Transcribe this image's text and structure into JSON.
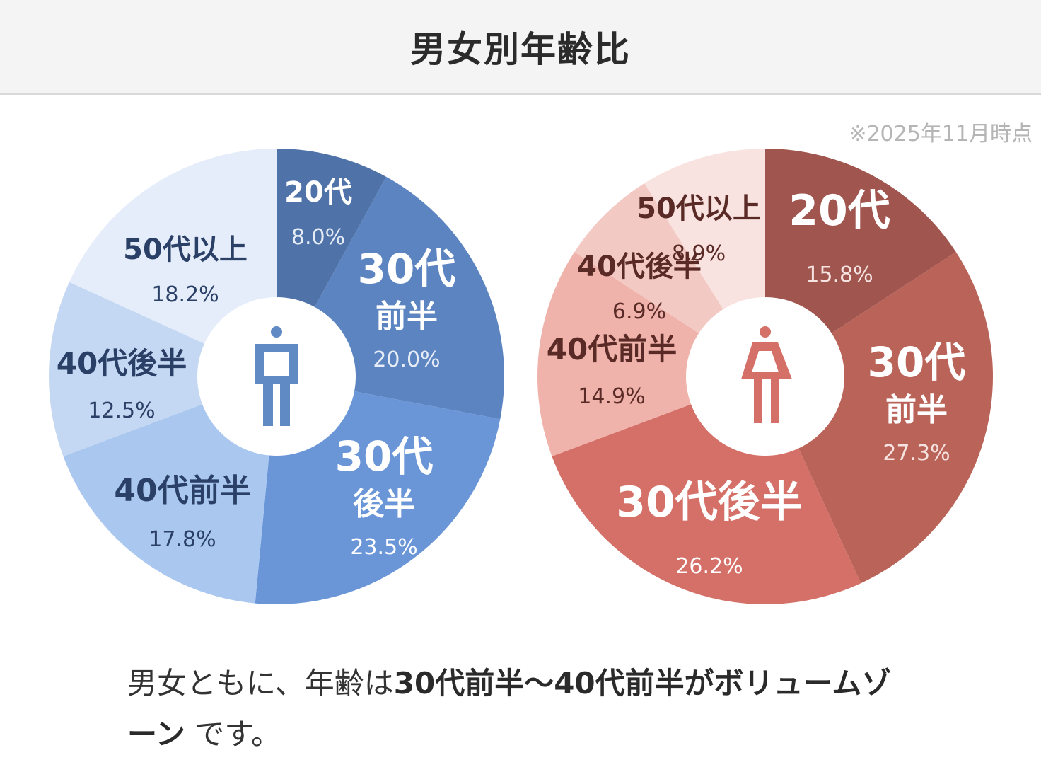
{
  "header": {
    "title": "男女別年齢比"
  },
  "note": "※2025年11月時点",
  "chart_data": [
    {
      "type": "pie",
      "icon": "male-person-icon",
      "accent": "#5f8ac4",
      "slices": [
        {
          "name": "20代",
          "value": 8.0,
          "label_lines": [
            "20代"
          ],
          "value_label": "8.0%",
          "color": "#4f73a8",
          "text": "#ffffff",
          "sub": "#e6edf7"
        },
        {
          "name": "30代前半",
          "value": 20.0,
          "label_lines": [
            "30代",
            "前半"
          ],
          "value_label": "20.0%",
          "color": "#5c84c1",
          "text": "#ffffff",
          "sub": "#e6edf7"
        },
        {
          "name": "30代後半",
          "value": 23.5,
          "label_lines": [
            "30代",
            "後半"
          ],
          "value_label": "23.5%",
          "color": "#6a96d8",
          "text": "#ffffff",
          "sub": "#ffffff"
        },
        {
          "name": "40代前半",
          "value": 17.8,
          "label_lines": [
            "40代前半"
          ],
          "value_label": "17.8%",
          "color": "#aac7f0",
          "text": "#2a4066",
          "sub": "#2a4066"
        },
        {
          "name": "40代後半",
          "value": 12.5,
          "label_lines": [
            "40代後半"
          ],
          "value_label": "12.5%",
          "color": "#c5d8f3",
          "text": "#2a4066",
          "sub": "#2a4066"
        },
        {
          "name": "50代以上",
          "value": 18.2,
          "label_lines": [
            "50代以上"
          ],
          "value_label": "18.2%",
          "color": "#e5edfa",
          "text": "#2a4066",
          "sub": "#2a4066"
        }
      ]
    },
    {
      "type": "pie",
      "icon": "female-person-icon",
      "accent": "#d57068",
      "slices": [
        {
          "name": "20代",
          "value": 15.8,
          "label_lines": [
            "20代"
          ],
          "value_label": "15.8%",
          "color": "#a0554e",
          "text": "#ffffff",
          "sub": "#f6e4e2"
        },
        {
          "name": "30代前半",
          "value": 27.3,
          "label_lines": [
            "30代",
            "前半"
          ],
          "value_label": "27.3%",
          "color": "#ba6358",
          "text": "#ffffff",
          "sub": "#f6e4e2"
        },
        {
          "name": "30代後半",
          "value": 26.2,
          "label_lines": [
            "30代後半"
          ],
          "value_label": "26.2%",
          "color": "#d57068",
          "text": "#ffffff",
          "sub": "#ffffff"
        },
        {
          "name": "40代前半",
          "value": 14.9,
          "label_lines": [
            "40代前半"
          ],
          "value_label": "14.9%",
          "color": "#f0b3ab",
          "text": "#5a2b26",
          "sub": "#5a2b26"
        },
        {
          "name": "40代後半",
          "value": 6.9,
          "label_lines": [
            "40代後半"
          ],
          "value_label": "6.9%",
          "color": "#f3c9c3",
          "text": "#5a2b26",
          "sub": "#5a2b26"
        },
        {
          "name": "50代以上",
          "value": 8.9,
          "label_lines": [
            "50代以上"
          ],
          "value_label": "8.9%",
          "color": "#f9e3e0",
          "text": "#5a2b26",
          "sub": "#5a2b26"
        }
      ]
    }
  ],
  "summary": {
    "part1": "男女ともに、年齢は",
    "bold1": "30代前半〜40代前半がボリュームゾーン",
    "part2": " です。"
  }
}
